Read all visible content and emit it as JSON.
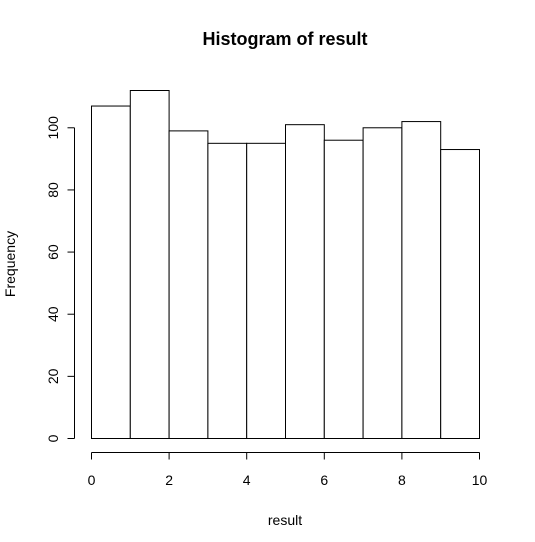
{
  "chart_data": {
    "type": "bar",
    "title": "Histogram of result",
    "xlabel": "result",
    "ylabel": "Frequency",
    "bins": [
      {
        "x0": 0,
        "x1": 1,
        "count": 107
      },
      {
        "x0": 1,
        "x1": 2,
        "count": 112
      },
      {
        "x0": 2,
        "x1": 3,
        "count": 99
      },
      {
        "x0": 3,
        "x1": 4,
        "count": 95
      },
      {
        "x0": 4,
        "x1": 5,
        "count": 95
      },
      {
        "x0": 5,
        "x1": 6,
        "count": 101
      },
      {
        "x0": 6,
        "x1": 7,
        "count": 96
      },
      {
        "x0": 7,
        "x1": 8,
        "count": 100
      },
      {
        "x0": 8,
        "x1": 9,
        "count": 102
      },
      {
        "x0": 9,
        "x1": 10,
        "count": 93
      }
    ],
    "xlim": [
      0,
      10
    ],
    "ylim": [
      0,
      112
    ],
    "x_ticks": [
      0,
      2,
      4,
      6,
      8,
      10
    ],
    "y_ticks": [
      0,
      20,
      40,
      60,
      80,
      100
    ],
    "grid": false,
    "colors": {
      "bar_fill": "#ffffff",
      "bar_stroke": "#000000"
    }
  }
}
